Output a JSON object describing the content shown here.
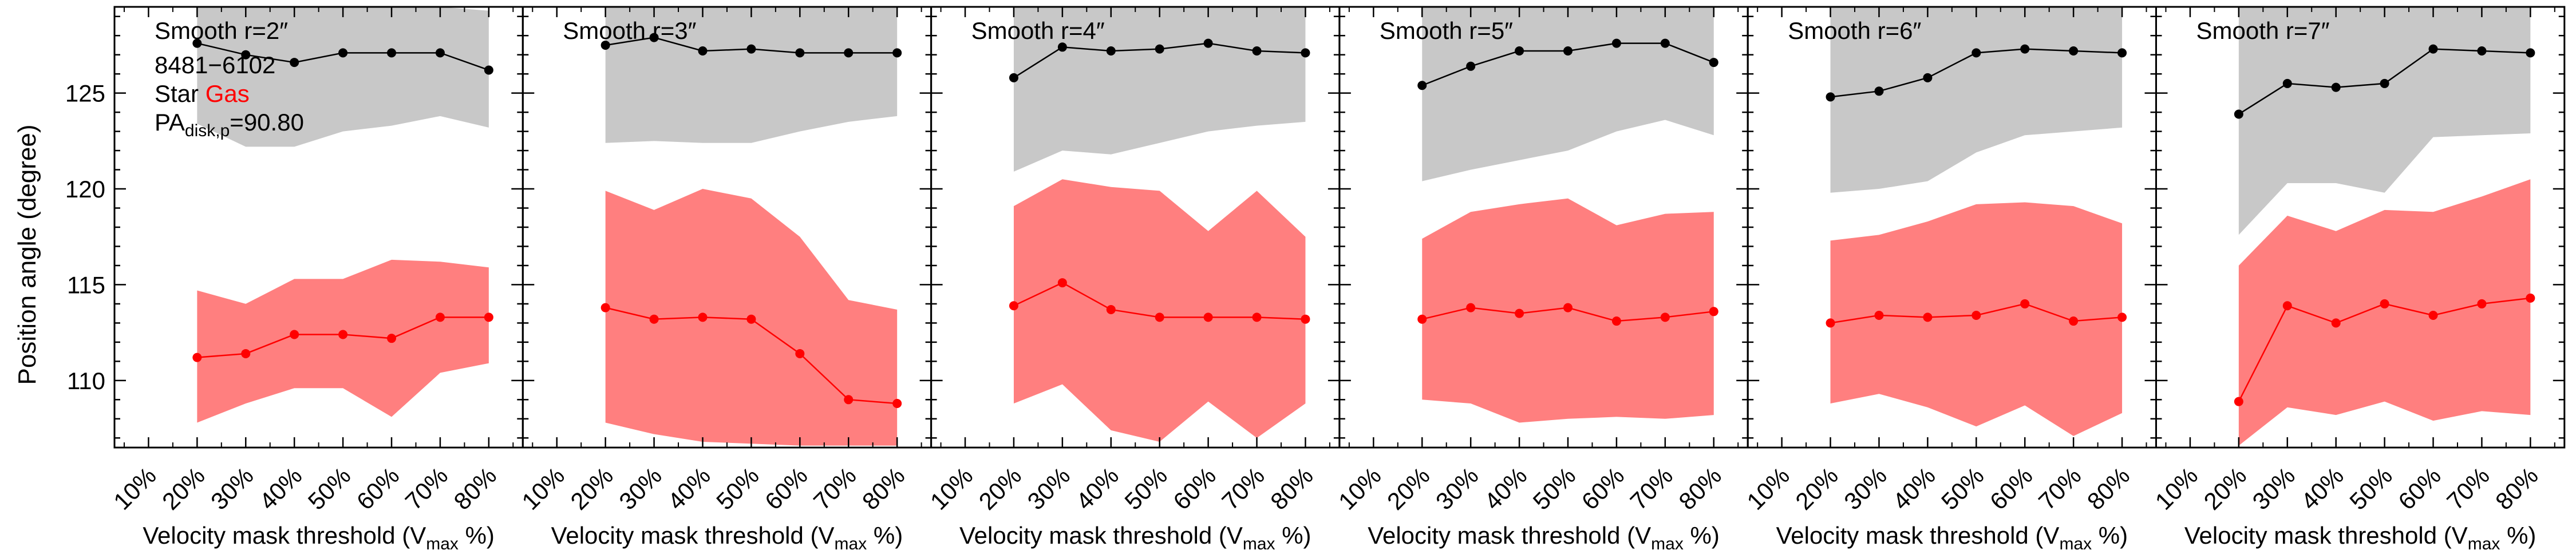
{
  "ylabel": "Position angle (degree)",
  "xlabel_main": "Velocity mask threshold (V",
  "xlabel_sub": "max",
  "xlabel_end": " %)",
  "x_tick_labels": [
    "10%",
    "20%",
    "30%",
    "40%",
    "50%",
    "60%",
    "70%",
    "80%"
  ],
  "y_tick_labels": [
    "110",
    "115",
    "120",
    "125"
  ],
  "annotation": {
    "object_id": "8481−6102",
    "star_label": "Star",
    "gas_label": "Gas",
    "pa_prefix": "PA",
    "pa_sub": "disk,p",
    "pa_suffix": "=90.80"
  },
  "colors": {
    "star_band": "#c8c8c8",
    "gas_band": "#ff7f7f",
    "star_line": "#000000",
    "gas_line": "#ff0000",
    "gas_text": "#ff0000"
  },
  "chart_data": [
    {
      "type": "line",
      "title": "Smooth r=2″",
      "x": [
        20,
        30,
        40,
        50,
        60,
        70,
        80
      ],
      "xlim": [
        3,
        87
      ],
      "ylim": [
        106.5,
        129.5
      ],
      "series": [
        {
          "name": "Star",
          "values": [
            127.6,
            127.0,
            126.6,
            127.1,
            127.1,
            127.1,
            126.2
          ],
          "lower": [
            123.4,
            122.2,
            122.2,
            123.0,
            123.3,
            123.8,
            123.2
          ],
          "upper": [
            129.5,
            129.5,
            129.5,
            129.5,
            129.5,
            129.5,
            129.3
          ]
        },
        {
          "name": "Gas",
          "values": [
            111.2,
            111.4,
            112.4,
            112.4,
            112.2,
            113.3,
            113.3
          ],
          "lower": [
            107.8,
            108.8,
            109.6,
            109.6,
            108.1,
            110.4,
            110.9
          ],
          "upper": [
            114.7,
            114.0,
            115.3,
            115.3,
            116.3,
            116.2,
            115.9
          ]
        }
      ]
    },
    {
      "type": "line",
      "title": "Smooth r=3″",
      "x": [
        20,
        30,
        40,
        50,
        60,
        70,
        80
      ],
      "xlim": [
        3,
        87
      ],
      "ylim": [
        106.5,
        129.5
      ],
      "series": [
        {
          "name": "Star",
          "values": [
            127.5,
            127.9,
            127.2,
            127.3,
            127.1,
            127.1,
            127.1
          ],
          "lower": [
            122.4,
            122.5,
            122.4,
            122.4,
            123.0,
            123.5,
            123.8
          ],
          "upper": [
            129.5,
            129.5,
            129.5,
            129.5,
            129.5,
            129.5,
            129.5
          ]
        },
        {
          "name": "Gas",
          "values": [
            113.8,
            113.2,
            113.3,
            113.2,
            111.4,
            109.0,
            108.8
          ],
          "lower": [
            107.8,
            107.2,
            106.8,
            106.7,
            106.6,
            106.6,
            106.6
          ],
          "upper": [
            119.9,
            118.9,
            120.0,
            119.5,
            117.5,
            114.2,
            113.7
          ]
        }
      ]
    },
    {
      "type": "line",
      "title": "Smooth r=4″",
      "x": [
        20,
        30,
        40,
        50,
        60,
        70,
        80
      ],
      "xlim": [
        3,
        87
      ],
      "ylim": [
        106.5,
        129.5
      ],
      "series": [
        {
          "name": "Star",
          "values": [
            125.8,
            127.4,
            127.2,
            127.3,
            127.6,
            127.2,
            127.1
          ],
          "lower": [
            120.9,
            122.0,
            121.8,
            122.4,
            123.0,
            123.3,
            123.5
          ],
          "upper": [
            129.5,
            129.5,
            129.5,
            129.5,
            129.5,
            129.5,
            129.5
          ]
        },
        {
          "name": "Gas",
          "values": [
            113.9,
            115.1,
            113.7,
            113.3,
            113.3,
            113.3,
            113.2
          ],
          "lower": [
            108.8,
            109.8,
            107.4,
            106.8,
            108.9,
            107.0,
            108.8
          ],
          "upper": [
            119.1,
            120.5,
            120.1,
            119.9,
            117.8,
            119.9,
            117.5
          ]
        }
      ]
    },
    {
      "type": "line",
      "title": "Smooth r=5″",
      "x": [
        20,
        30,
        40,
        50,
        60,
        70,
        80
      ],
      "xlim": [
        3,
        87
      ],
      "ylim": [
        106.5,
        129.5
      ],
      "series": [
        {
          "name": "Star",
          "values": [
            125.4,
            126.4,
            127.2,
            127.2,
            127.6,
            127.6,
            126.6
          ],
          "lower": [
            120.4,
            121.0,
            121.5,
            122.0,
            123.0,
            123.6,
            122.8
          ],
          "upper": [
            129.5,
            129.5,
            129.5,
            129.5,
            129.5,
            129.5,
            129.5
          ]
        },
        {
          "name": "Gas",
          "values": [
            113.2,
            113.8,
            113.5,
            113.8,
            113.1,
            113.3,
            113.6
          ],
          "lower": [
            109.0,
            108.8,
            107.8,
            108.0,
            108.1,
            108.0,
            108.2
          ],
          "upper": [
            117.4,
            118.8,
            119.2,
            119.5,
            118.1,
            118.7,
            118.8
          ]
        }
      ]
    },
    {
      "type": "line",
      "title": "Smooth r=6″",
      "x": [
        20,
        30,
        40,
        50,
        60,
        70,
        80
      ],
      "xlim": [
        3,
        87
      ],
      "ylim": [
        106.5,
        129.5
      ],
      "series": [
        {
          "name": "Star",
          "values": [
            124.8,
            125.1,
            125.8,
            127.1,
            127.3,
            127.2,
            127.1
          ],
          "lower": [
            119.8,
            120.0,
            120.4,
            121.9,
            122.8,
            123.0,
            123.2
          ],
          "upper": [
            129.5,
            129.5,
            129.5,
            129.5,
            129.5,
            129.5,
            129.5
          ]
        },
        {
          "name": "Gas",
          "values": [
            113.0,
            113.4,
            113.3,
            113.4,
            114.0,
            113.1,
            113.3
          ],
          "lower": [
            108.8,
            109.3,
            108.6,
            107.6,
            108.7,
            107.1,
            108.3
          ],
          "upper": [
            117.3,
            117.6,
            118.3,
            119.2,
            119.3,
            119.1,
            118.2
          ]
        }
      ]
    },
    {
      "type": "line",
      "title": "Smooth r=7″",
      "x": [
        20,
        30,
        40,
        50,
        60,
        70,
        80
      ],
      "xlim": [
        3,
        87
      ],
      "ylim": [
        106.5,
        129.5
      ],
      "series": [
        {
          "name": "Star",
          "values": [
            123.9,
            125.5,
            125.3,
            125.5,
            127.3,
            127.2,
            127.1
          ],
          "lower": [
            117.6,
            120.3,
            120.3,
            119.8,
            122.7,
            122.8,
            122.9
          ],
          "upper": [
            129.5,
            129.5,
            129.5,
            129.5,
            129.5,
            129.5,
            129.5
          ]
        },
        {
          "name": "Gas",
          "values": [
            108.9,
            113.9,
            113.0,
            114.0,
            113.4,
            114.0,
            114.3
          ],
          "lower": [
            106.6,
            108.6,
            108.2,
            108.9,
            107.9,
            108.4,
            108.2
          ],
          "upper": [
            116.0,
            118.6,
            117.8,
            118.9,
            118.8,
            119.6,
            120.5
          ]
        }
      ]
    }
  ]
}
